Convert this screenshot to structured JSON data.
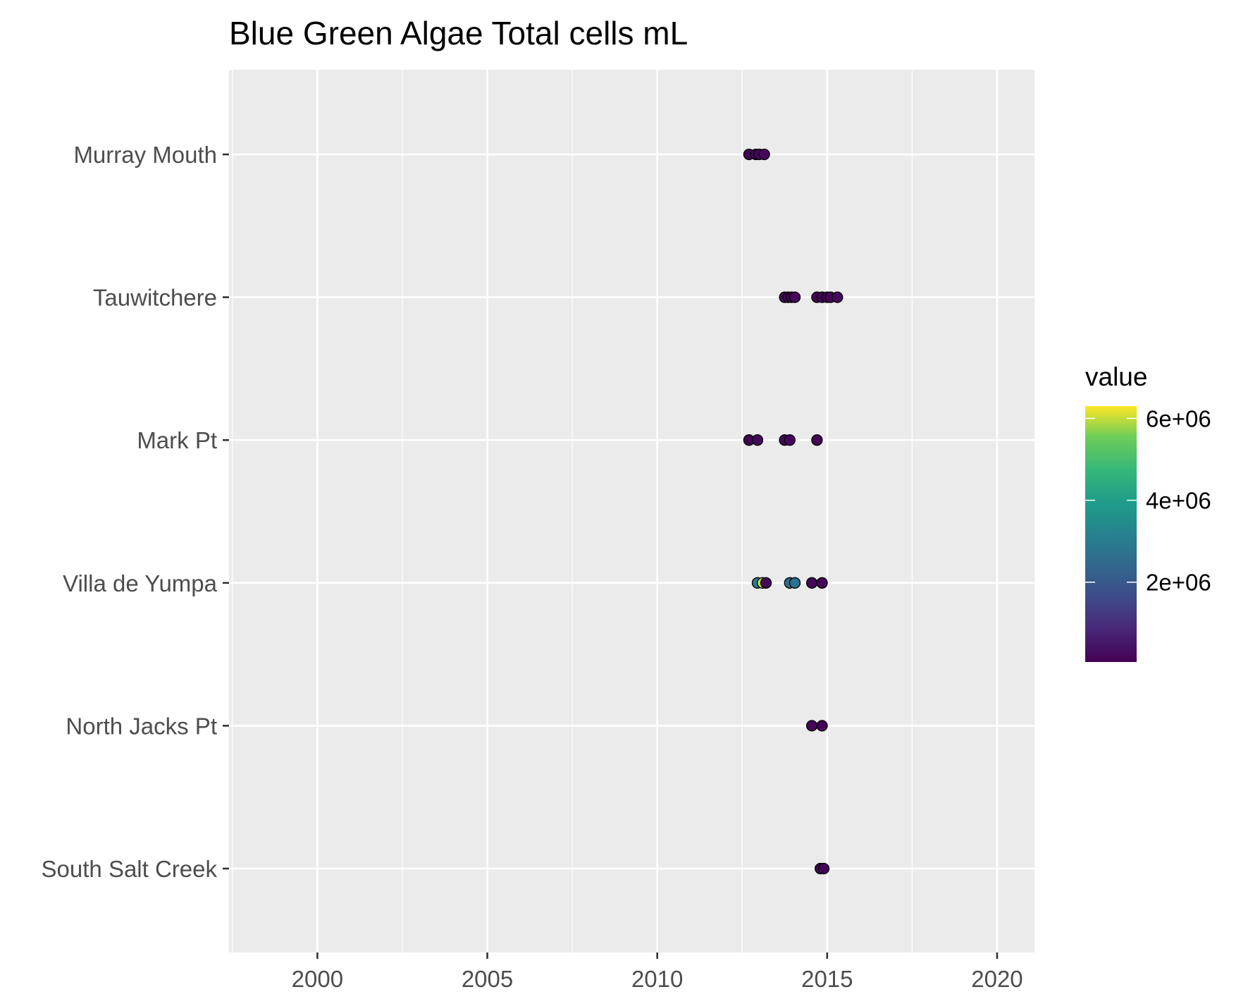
{
  "chart_data": {
    "type": "scatter",
    "title": "Blue Green Algae Total cells mL",
    "xlabel": "",
    "ylabel": "",
    "x_ticks": [
      2000,
      2005,
      2010,
      2015,
      2020
    ],
    "x_tick_labels": [
      "2000",
      "2005",
      "2010",
      "2015",
      "2020"
    ],
    "xlim": [
      1997.4,
      2021.1
    ],
    "categories": [
      "Murray Mouth",
      "Tauwitchere",
      "Mark Pt",
      "Villa de Yumpa",
      "North Jacks Pt",
      "South Salt Creek"
    ],
    "grid": true,
    "legend": {
      "title": "value",
      "position": "right",
      "type": "colorbar",
      "palette": "viridis",
      "range": [
        50000,
        6300000
      ],
      "breaks": [
        2000000,
        4000000,
        6000000
      ],
      "break_labels": [
        "2e+06",
        "4e+06",
        "6e+06"
      ]
    },
    "points": [
      {
        "site": "Murray Mouth",
        "x": 2012.7,
        "value": 120000
      },
      {
        "site": "Murray Mouth",
        "x": 2012.9,
        "value": 90000
      },
      {
        "site": "Murray Mouth",
        "x": 2013.0,
        "value": 150000
      },
      {
        "site": "Murray Mouth",
        "x": 2013.15,
        "value": 200000
      },
      {
        "site": "Tauwitchere",
        "x": 2013.75,
        "value": 150000
      },
      {
        "site": "Tauwitchere",
        "x": 2013.85,
        "value": 100000
      },
      {
        "site": "Tauwitchere",
        "x": 2013.95,
        "value": 120000
      },
      {
        "site": "Tauwitchere",
        "x": 2014.05,
        "value": 200000
      },
      {
        "site": "Tauwitchere",
        "x": 2014.7,
        "value": 120000
      },
      {
        "site": "Tauwitchere",
        "x": 2014.85,
        "value": 100000
      },
      {
        "site": "Tauwitchere",
        "x": 2015.0,
        "value": 180000
      },
      {
        "site": "Tauwitchere",
        "x": 2015.1,
        "value": 150000
      },
      {
        "site": "Tauwitchere",
        "x": 2015.3,
        "value": 200000
      },
      {
        "site": "Mark Pt",
        "x": 2012.7,
        "value": 100000
      },
      {
        "site": "Mark Pt",
        "x": 2012.95,
        "value": 150000
      },
      {
        "site": "Mark Pt",
        "x": 2013.75,
        "value": 120000
      },
      {
        "site": "Mark Pt",
        "x": 2013.9,
        "value": 180000
      },
      {
        "site": "Mark Pt",
        "x": 2014.7,
        "value": 150000
      },
      {
        "site": "Villa de Yumpa",
        "x": 2012.95,
        "value": 2900000
      },
      {
        "site": "Villa de Yumpa",
        "x": 2013.1,
        "value": 6000000
      },
      {
        "site": "Villa de Yumpa",
        "x": 2013.2,
        "value": 150000
      },
      {
        "site": "Villa de Yumpa",
        "x": 2013.9,
        "value": 2500000
      },
      {
        "site": "Villa de Yumpa",
        "x": 2014.05,
        "value": 2700000
      },
      {
        "site": "Villa de Yumpa",
        "x": 2014.55,
        "value": 200000
      },
      {
        "site": "Villa de Yumpa",
        "x": 2014.85,
        "value": 150000
      },
      {
        "site": "North Jacks Pt",
        "x": 2014.55,
        "value": 150000
      },
      {
        "site": "North Jacks Pt",
        "x": 2014.85,
        "value": 100000
      },
      {
        "site": "South Salt Creek",
        "x": 2014.8,
        "value": 150000
      },
      {
        "site": "South Salt Creek",
        "x": 2014.9,
        "value": 120000
      }
    ]
  }
}
